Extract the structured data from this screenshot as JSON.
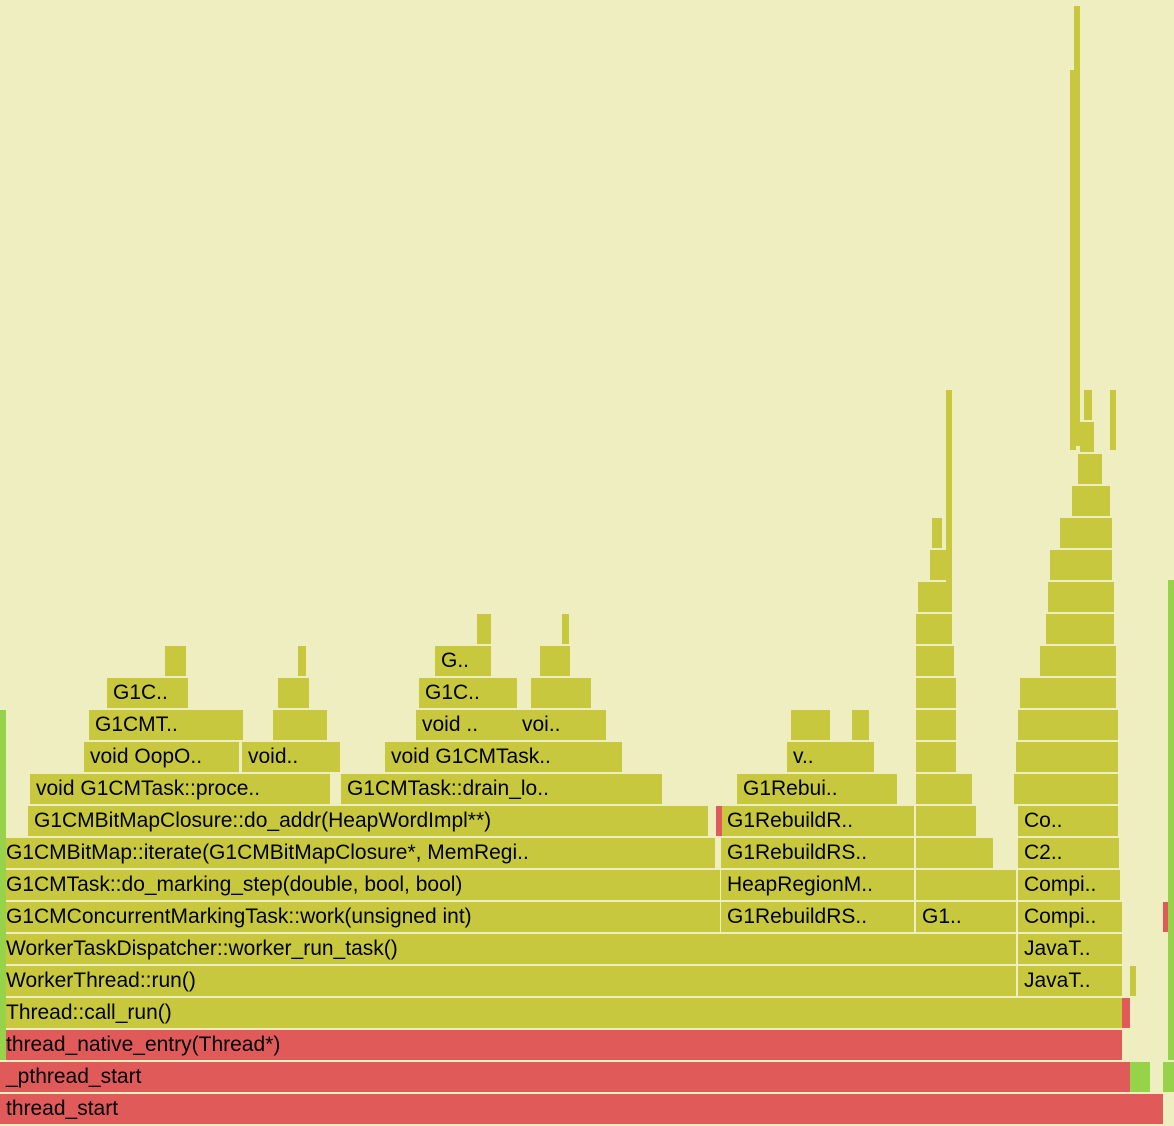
{
  "view": {
    "title": "",
    "type": "flame graph"
  },
  "colors": {
    "background": "#EEEEC0",
    "frame": "#C8C83E",
    "native": "#E05A5A",
    "interpreted": "#96D24A"
  },
  "frames": {
    "thread_start": "thread_start",
    "pthread_start": "_pthread_start",
    "thread_native_entry": "thread_native_entry(Thread*)",
    "call_run": "Thread::call_run()",
    "worker_thread_run": "WorkerThread::run()",
    "worker_run_task": "WorkerTaskDispatcher::worker_run_task()",
    "concurrent_marking_work": "G1CMConcurrentMarkingTask::work(unsigned int)",
    "do_marking_step": "G1CMTask::do_marking_step(double, bool, bool)",
    "bitmap_iterate": "G1CMBitMap::iterate(G1CMBitMapClosure*, MemRegi..",
    "do_addr": "G1CMBitMapClosure::do_addr(HeapWordImpl**)",
    "process_grey": "void G1CMTask::proce..",
    "drain_local": "G1CMTask::drain_lo..",
    "oop_iterate": "void OopO..",
    "void_small": "void..",
    "void_g1cmtask": "void G1CMTask..",
    "g1cmt": "G1CMT..",
    "g1c_left": "G1C..",
    "void_mid": "void ..",
    "voi_mid": "voi..",
    "g1c_mid": "G1C..",
    "g_top": "G..",
    "rebuild_rs_task": "G1RebuildRS..",
    "heap_region_manager": "HeapRegionM..",
    "rebuild_rs_closure": "G1RebuildRS..",
    "rebuild_r": "G1RebuildR..",
    "rebui": "G1Rebui..",
    "v_short": "v..",
    "g1_short": "G1..",
    "java_thread_1": "JavaT..",
    "java_thread_2": "JavaT..",
    "compile_1": "Compi..",
    "compile_2": "Compi..",
    "c2": "C2..",
    "co": "Co.."
  }
}
